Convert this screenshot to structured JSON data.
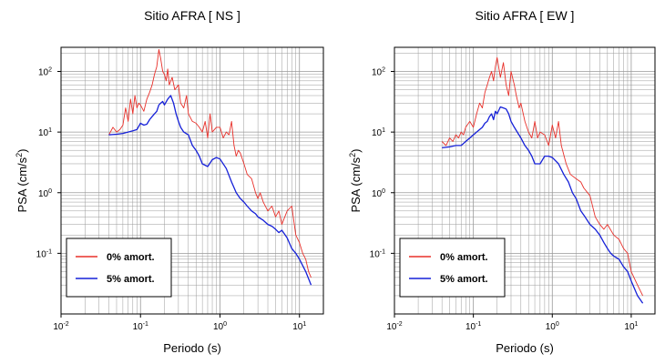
{
  "chart_data": [
    {
      "type": "line",
      "title": "Sitio AFRA [ NS ]",
      "xlabel": "Periodo (s)",
      "ylabel": {
        "main": "PSA (cm/s",
        "sup": "2",
        "close": ")"
      },
      "xscale": "log",
      "yscale": "log",
      "xlim": [
        0.01,
        20
      ],
      "ylim": [
        0.01,
        250
      ],
      "grid": true,
      "legend_position": "bottom-left",
      "x_ticks": [
        {
          "value": 0.01,
          "base": "10",
          "exp": "-2"
        },
        {
          "value": 0.1,
          "base": "10",
          "exp": "-1"
        },
        {
          "value": 1,
          "base": "10",
          "exp": "0"
        },
        {
          "value": 10,
          "base": "10",
          "exp": "1"
        }
      ],
      "y_ticks": [
        {
          "value": 0.1,
          "base": "10",
          "exp": "-1"
        },
        {
          "value": 1,
          "base": "10",
          "exp": "0"
        },
        {
          "value": 10,
          "base": "10",
          "exp": "1"
        },
        {
          "value": 100,
          "base": "10",
          "exp": "2"
        }
      ],
      "series": [
        {
          "name": "0% amort.",
          "color": "#e8302a",
          "x": [
            0.04,
            0.045,
            0.05,
            0.055,
            0.06,
            0.065,
            0.07,
            0.075,
            0.08,
            0.085,
            0.09,
            0.095,
            0.1,
            0.11,
            0.12,
            0.13,
            0.14,
            0.15,
            0.16,
            0.17,
            0.18,
            0.19,
            0.2,
            0.21,
            0.22,
            0.23,
            0.25,
            0.27,
            0.3,
            0.32,
            0.35,
            0.38,
            0.4,
            0.45,
            0.5,
            0.55,
            0.6,
            0.65,
            0.7,
            0.75,
            0.8,
            0.9,
            1.0,
            1.1,
            1.2,
            1.3,
            1.4,
            1.5,
            1.6,
            1.7,
            1.8,
            2.0,
            2.2,
            2.5,
            2.8,
            3.0,
            3.2,
            3.5,
            4.0,
            4.5,
            5.0,
            5.5,
            6.0,
            7.0,
            8.0,
            9.0,
            10.0,
            11.0,
            12.0,
            13.0,
            14.0
          ],
          "y": [
            9,
            12,
            10,
            11,
            13,
            25,
            15,
            35,
            20,
            40,
            25,
            30,
            28,
            22,
            35,
            45,
            60,
            90,
            120,
            230,
            160,
            100,
            90,
            70,
            110,
            60,
            80,
            50,
            60,
            30,
            25,
            40,
            20,
            15,
            14,
            12,
            10,
            15,
            8,
            20,
            10,
            12,
            12,
            8,
            10,
            9,
            15,
            6,
            4,
            5,
            4.5,
            3,
            2,
            1.7,
            1,
            0.8,
            1,
            0.7,
            0.5,
            0.6,
            0.4,
            0.5,
            0.3,
            0.5,
            0.6,
            0.2,
            0.15,
            0.1,
            0.08,
            0.05,
            0.04
          ]
        },
        {
          "name": "5% amort.",
          "color": "#1520d8",
          "x": [
            0.04,
            0.05,
            0.06,
            0.07,
            0.08,
            0.09,
            0.1,
            0.11,
            0.12,
            0.13,
            0.14,
            0.15,
            0.16,
            0.17,
            0.18,
            0.19,
            0.2,
            0.22,
            0.24,
            0.26,
            0.28,
            0.3,
            0.32,
            0.35,
            0.4,
            0.45,
            0.5,
            0.55,
            0.6,
            0.7,
            0.8,
            0.9,
            1.0,
            1.2,
            1.4,
            1.6,
            1.8,
            2.0,
            2.2,
            2.5,
            2.8,
            3.0,
            3.5,
            4.0,
            4.5,
            5.0,
            5.5,
            6.0,
            7.0,
            8.0,
            9.0,
            10.0,
            12.0,
            14.0
          ],
          "y": [
            9,
            9.2,
            9.5,
            10,
            10.5,
            11,
            14,
            13,
            13.5,
            16,
            18,
            20,
            22,
            28,
            30,
            32,
            28,
            35,
            40,
            30,
            20,
            15,
            12,
            10,
            9,
            6,
            5,
            4,
            3,
            2.7,
            3.5,
            3.8,
            3.6,
            2.5,
            1.5,
            1,
            0.8,
            0.7,
            0.6,
            0.5,
            0.45,
            0.4,
            0.35,
            0.3,
            0.28,
            0.25,
            0.22,
            0.24,
            0.18,
            0.12,
            0.1,
            0.08,
            0.05,
            0.03
          ]
        }
      ]
    },
    {
      "type": "line",
      "title": "Sitio AFRA [ EW ]",
      "xlabel": "Periodo (s)",
      "ylabel": {
        "main": "PSA (cm/s",
        "sup": "2",
        "close": ")"
      },
      "xscale": "log",
      "yscale": "log",
      "xlim": [
        0.01,
        20
      ],
      "ylim": [
        0.01,
        250
      ],
      "grid": true,
      "legend_position": "bottom-left",
      "x_ticks": [
        {
          "value": 0.01,
          "base": "10",
          "exp": "-2"
        },
        {
          "value": 0.1,
          "base": "10",
          "exp": "-1"
        },
        {
          "value": 1,
          "base": "10",
          "exp": "0"
        },
        {
          "value": 10,
          "base": "10",
          "exp": "1"
        }
      ],
      "y_ticks": [
        {
          "value": 0.1,
          "base": "10",
          "exp": "-1"
        },
        {
          "value": 1,
          "base": "10",
          "exp": "0"
        },
        {
          "value": 10,
          "base": "10",
          "exp": "1"
        },
        {
          "value": 100,
          "base": "10",
          "exp": "2"
        }
      ],
      "series": [
        {
          "name": "0% amort.",
          "color": "#e8302a",
          "x": [
            0.04,
            0.045,
            0.05,
            0.055,
            0.06,
            0.065,
            0.07,
            0.075,
            0.08,
            0.09,
            0.1,
            0.11,
            0.12,
            0.13,
            0.14,
            0.15,
            0.16,
            0.17,
            0.18,
            0.19,
            0.2,
            0.22,
            0.24,
            0.26,
            0.28,
            0.3,
            0.33,
            0.35,
            0.38,
            0.4,
            0.45,
            0.5,
            0.55,
            0.6,
            0.65,
            0.7,
            0.8,
            0.9,
            1.0,
            1.1,
            1.2,
            1.3,
            1.5,
            1.7,
            2.0,
            2.3,
            2.5,
            2.8,
            3.0,
            3.5,
            4.0,
            4.5,
            5.0,
            6.0,
            7.0,
            8.0,
            9.0,
            10.0,
            12.0,
            14.0
          ],
          "y": [
            7,
            6,
            8,
            7,
            9,
            8,
            10,
            9,
            12,
            15,
            12,
            20,
            30,
            25,
            45,
            60,
            80,
            100,
            70,
            120,
            170,
            80,
            140,
            60,
            40,
            100,
            60,
            40,
            25,
            30,
            15,
            10,
            8,
            15,
            8,
            10,
            9,
            6,
            13,
            8,
            15,
            6,
            3,
            2,
            1.7,
            1.5,
            1.2,
            1,
            0.9,
            0.4,
            0.3,
            0.25,
            0.3,
            0.2,
            0.17,
            0.12,
            0.1,
            0.05,
            0.03,
            0.02
          ]
        },
        {
          "name": "5% amort.",
          "color": "#1520d8",
          "x": [
            0.04,
            0.05,
            0.06,
            0.07,
            0.08,
            0.09,
            0.1,
            0.11,
            0.12,
            0.13,
            0.14,
            0.15,
            0.16,
            0.17,
            0.18,
            0.19,
            0.2,
            0.22,
            0.24,
            0.26,
            0.28,
            0.3,
            0.33,
            0.36,
            0.4,
            0.45,
            0.5,
            0.55,
            0.6,
            0.7,
            0.8,
            0.9,
            1.0,
            1.2,
            1.4,
            1.6,
            1.8,
            2.0,
            2.3,
            2.6,
            3.0,
            3.5,
            4.0,
            4.5,
            5.0,
            5.5,
            6.0,
            7.0,
            8.0,
            9.0,
            10.0,
            12.0,
            14.0
          ],
          "y": [
            5.5,
            5.7,
            6,
            6,
            7,
            8,
            9,
            10,
            11,
            12,
            14,
            15,
            18,
            20,
            16,
            22,
            20,
            26,
            25,
            24,
            20,
            15,
            12,
            10,
            8,
            6,
            5,
            4,
            3,
            3,
            4,
            4,
            3.8,
            3,
            2,
            1.5,
            1,
            0.8,
            0.5,
            0.4,
            0.3,
            0.25,
            0.2,
            0.15,
            0.12,
            0.1,
            0.09,
            0.08,
            0.06,
            0.05,
            0.035,
            0.02,
            0.015
          ]
        }
      ]
    }
  ]
}
